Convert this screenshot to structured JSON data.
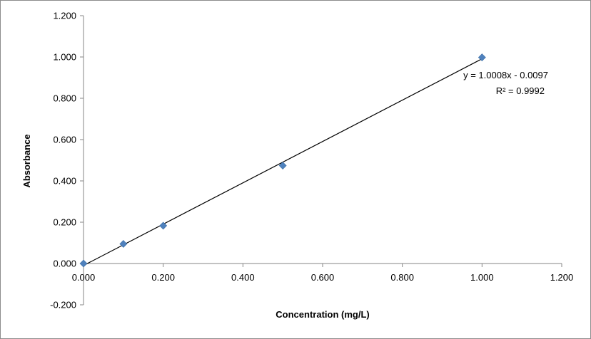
{
  "chart_data": {
    "type": "scatter",
    "title": "",
    "xlabel": "Concentration (mg/L)",
    "ylabel": "Absorbance",
    "xlim": [
      0,
      1.2
    ],
    "ylim": [
      -0.2,
      1.2
    ],
    "x_ticks": [
      "0.000",
      "0.200",
      "0.400",
      "0.600",
      "0.800",
      "1.000",
      "1.200"
    ],
    "y_ticks": [
      "-0.200",
      "0.000",
      "0.200",
      "0.400",
      "0.600",
      "0.800",
      "1.000",
      "1.200"
    ],
    "grid": false,
    "legend": "none",
    "series": [
      {
        "x": [
          0.0,
          0.1,
          0.2,
          0.5,
          1.0
        ],
        "y": [
          0.0,
          0.095,
          0.183,
          0.474,
          0.998
        ],
        "color": "#4f81bd",
        "marker": "diamond"
      }
    ],
    "trendline": {
      "type": "linear",
      "slope": 1.0008,
      "intercept": -0.0097,
      "x_range": [
        0.0,
        1.0
      ],
      "color": "#000000",
      "equation": "y = 1.0008x  - 0.0097",
      "r_squared": "R² = 0.9992"
    }
  }
}
